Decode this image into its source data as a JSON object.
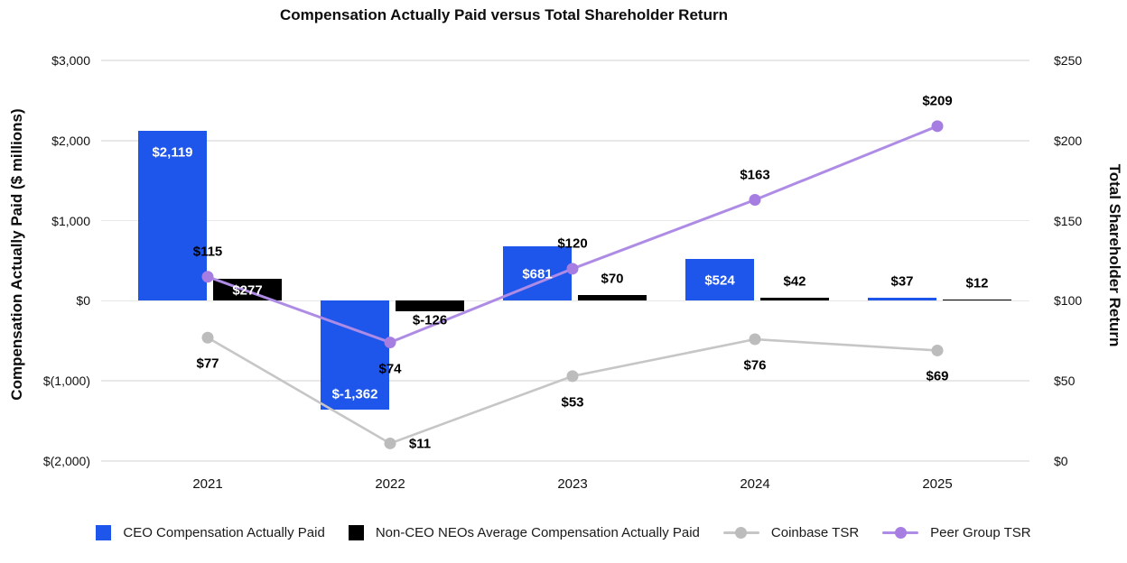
{
  "chart_data": {
    "type": "combo-bar-line",
    "title": "Compensation Actually Paid versus Total Shareholder Return",
    "categories": [
      "2021",
      "2022",
      "2023",
      "2024",
      "2025"
    ],
    "grid": true,
    "legend_position": "bottom",
    "left_axis": {
      "label": "Compensation Actually Paid ($ millions)",
      "min": -2000,
      "max": 3000,
      "ticks": [
        {
          "value": 3000,
          "label": "$3,000"
        },
        {
          "value": 2000,
          "label": "$2,000"
        },
        {
          "value": 1000,
          "label": "$1,000"
        },
        {
          "value": 0,
          "label": "$0"
        },
        {
          "value": -1000,
          "label": "$(1,000)"
        },
        {
          "value": -2000,
          "label": "$(2,000)"
        }
      ]
    },
    "right_axis": {
      "label": "Total Shareholder Return",
      "min": 0,
      "max": 250,
      "ticks": [
        {
          "value": 250,
          "label": "$250"
        },
        {
          "value": 200,
          "label": "$200"
        },
        {
          "value": 150,
          "label": "$150"
        },
        {
          "value": 100,
          "label": "$100"
        },
        {
          "value": 50,
          "label": "$50"
        },
        {
          "value": 0,
          "label": "$0"
        }
      ]
    },
    "series": [
      {
        "name": "CEO Compensation Actually Paid",
        "type": "bar",
        "axis": "left",
        "color": "#1E55EB",
        "values": [
          2119,
          -1362,
          681,
          524,
          37
        ],
        "data_labels": [
          "$2,119",
          "$-1,362",
          "$681",
          "$524",
          "$37"
        ],
        "label_placements": [
          "inside-top",
          "inside-bottom",
          "inside-center",
          "inside-center",
          "above"
        ]
      },
      {
        "name": "Non-CEO NEOs Average Compensation Actually Paid",
        "type": "bar",
        "axis": "left",
        "color": "#000000",
        "values": [
          277,
          -126,
          70,
          42,
          12
        ],
        "data_labels": [
          "$277",
          "$-126",
          "$70",
          "$42",
          "$12"
        ],
        "label_placements": [
          "inside-center",
          "below",
          "above",
          "above",
          "above"
        ]
      },
      {
        "name": "Coinbase TSR",
        "type": "line",
        "axis": "right",
        "color": "#C6C6C6",
        "dot_color": "#BCBCBC",
        "values": [
          77,
          11,
          53,
          76,
          69
        ],
        "data_labels": [
          "$77",
          "$11",
          "$53",
          "$76",
          "$69"
        ],
        "label_placements": [
          "below",
          "right",
          "below",
          "below",
          "below"
        ]
      },
      {
        "name": "Peer Group TSR",
        "type": "line",
        "axis": "right",
        "color": "#AE8CE6",
        "dot_color": "#A67DE1",
        "values": [
          115,
          74,
          120,
          163,
          209
        ],
        "data_labels": [
          "$115",
          "$74",
          "$120",
          "$163",
          "$209"
        ],
        "label_placements": [
          "above",
          "below",
          "above",
          "above",
          "above"
        ]
      }
    ]
  }
}
